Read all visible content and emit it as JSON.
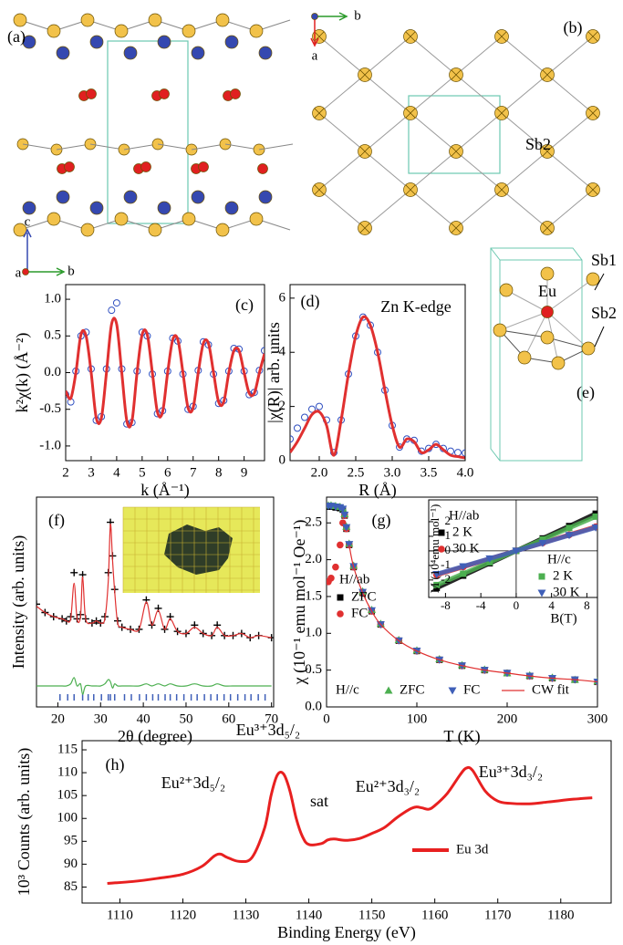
{
  "structure_labels": {
    "a": "(a)",
    "b": "(b)",
    "e": "(e)",
    "sb2_b": "Sb2",
    "eu": "Eu",
    "sb1": "Sb1",
    "sb2_e": "Sb2",
    "axis_b_top": "b",
    "axis_a_top": "a",
    "axis_c": "c",
    "axis_b": "b",
    "axis_a": "a"
  },
  "chart_data": [
    {
      "type": "line",
      "panel_label": "(c)",
      "xlabel": "k (Å⁻¹)",
      "ylabel": "k²χ(k) (Å⁻²)",
      "xlim": [
        2,
        9.8
      ],
      "ylim": [
        -1.2,
        1.2
      ],
      "xticks": [
        2,
        3,
        4,
        5,
        6,
        7,
        8,
        9
      ],
      "yticks": [
        {
          "value": -1,
          "label": "-1.0"
        },
        -0.5,
        {
          "value": 0,
          "label": "0.0"
        },
        0.5,
        {
          "value": 1,
          "label": "1.0"
        }
      ],
      "x": [
        2.0,
        2.2,
        2.4,
        2.6,
        2.8,
        3.0,
        3.2,
        3.4,
        3.6,
        3.8,
        4.0,
        4.2,
        4.4,
        4.6,
        4.8,
        5.0,
        5.2,
        5.4,
        5.6,
        5.8,
        6.0,
        6.2,
        6.4,
        6.6,
        6.8,
        7.0,
        7.2,
        7.4,
        7.6,
        7.8,
        8.0,
        8.2,
        8.4,
        8.6,
        8.8,
        9.0,
        9.2,
        9.4,
        9.6,
        9.8
      ],
      "series": [
        {
          "color": "#2f4fc0",
          "marker": "open-circle",
          "values": [
            -0.3,
            -0.4,
            0.02,
            0.5,
            0.55,
            0.05,
            -0.65,
            -0.6,
            0.05,
            0.85,
            0.95,
            0.05,
            -0.7,
            -0.68,
            0.02,
            0.55,
            0.5,
            -0.02,
            -0.56,
            -0.52,
            0.02,
            0.47,
            0.43,
            -0.02,
            -0.5,
            -0.46,
            0.03,
            0.42,
            0.38,
            -0.02,
            -0.42,
            -0.38,
            0.02,
            0.33,
            0.32,
            0.02,
            -0.3,
            -0.27,
            0.03,
            0.3
          ]
        },
        {
          "color": "#e03030",
          "marker": "line",
          "values": [
            -0.25,
            -0.35,
            0,
            0.52,
            0.5,
            0,
            -0.62,
            -0.62,
            0,
            0.66,
            0.66,
            0,
            -0.66,
            -0.66,
            0,
            0.52,
            0.52,
            0,
            -0.54,
            -0.54,
            0,
            0.45,
            0.45,
            0,
            -0.48,
            -0.48,
            0,
            0.4,
            0.4,
            0,
            -0.4,
            -0.4,
            0,
            0.3,
            0.3,
            0,
            -0.28,
            -0.28,
            0,
            0.26
          ]
        }
      ]
    },
    {
      "type": "line",
      "panel_label": "(d)",
      "annotation": "Zn K-edge",
      "xlabel": "R (Å)",
      "ylabel": "|χ(R)| arb. units",
      "xlim": [
        1.6,
        4.0
      ],
      "ylim": [
        0,
        6.5
      ],
      "xticks": [
        {
          "value": 2,
          "label": "2.0"
        },
        2.5,
        {
          "value": 3,
          "label": "3.0"
        },
        3.5,
        {
          "value": 4,
          "label": "4.0"
        }
      ],
      "yticks": [
        0,
        2,
        4,
        6
      ],
      "x": [
        1.6,
        1.7,
        1.8,
        1.9,
        2.0,
        2.1,
        2.2,
        2.3,
        2.4,
        2.5,
        2.6,
        2.7,
        2.8,
        2.9,
        3.0,
        3.1,
        3.2,
        3.3,
        3.4,
        3.5,
        3.6,
        3.7,
        3.8,
        3.9,
        4.0
      ],
      "series": [
        {
          "color": "#2f4fc0",
          "marker": "open-circle",
          "values": [
            0.8,
            1.2,
            1.6,
            1.9,
            2.0,
            1.5,
            0.3,
            1.5,
            3.2,
            4.6,
            5.3,
            5.0,
            4.0,
            2.6,
            1.3,
            0.5,
            0.8,
            0.75,
            0.35,
            0.45,
            0.6,
            0.45,
            0.35,
            0.3,
            0.28
          ]
        },
        {
          "color": "#e03030",
          "marker": "line",
          "values": [
            0.3,
            0.7,
            1.2,
            1.7,
            1.8,
            1.3,
            0.2,
            1.5,
            3.2,
            4.6,
            5.3,
            5.0,
            4.0,
            2.6,
            1.3,
            0.5,
            0.8,
            0.7,
            0.3,
            0.4,
            0.6,
            0.4,
            0.2,
            0.15,
            0.1
          ]
        }
      ]
    },
    {
      "type": "line",
      "panel_label": "(f)",
      "xlabel": "2θ (degree)",
      "ylabel": "Intensity (arb. units)",
      "xlim": [
        15,
        70.5
      ],
      "ylim": [
        0,
        100
      ],
      "xticks": [
        20,
        30,
        40,
        50,
        60,
        70
      ],
      "x": [
        15,
        17,
        19,
        21,
        22,
        23,
        23.8,
        24.5,
        25.3,
        25.8,
        26.5,
        28,
        29,
        30,
        31,
        31.8,
        32.3,
        32.8,
        33.3,
        34,
        35,
        37,
        39,
        40.7,
        42,
        43.5,
        45,
        46.3,
        48,
        50,
        52,
        54,
        56,
        57.3,
        59,
        61,
        63,
        65,
        67,
        70
      ],
      "series": [
        {
          "color": "#000000",
          "marker": "cross",
          "values": [
            49,
            45,
            43,
            42,
            41,
            43,
            64,
            42,
            44,
            63,
            42,
            40,
            41,
            40,
            43,
            64,
            88,
            72,
            56,
            41,
            38,
            37,
            37,
            51,
            39,
            47,
            37,
            43,
            36,
            35,
            39,
            35,
            34,
            39,
            34,
            34,
            35,
            33,
            34,
            33
          ]
        },
        {
          "color": "#e03030",
          "marker": "line",
          "values": [
            48,
            45,
            43,
            42,
            41,
            42,
            59,
            42,
            43,
            62,
            42,
            40,
            41,
            40,
            42,
            60,
            87,
            70,
            55,
            40,
            38,
            37,
            37,
            50,
            39,
            46,
            37,
            42,
            36,
            35,
            38,
            35,
            34,
            38,
            34,
            34,
            35,
            33,
            34,
            33
          ]
        },
        {
          "color": "#4caf50",
          "marker": "line",
          "values": [
            10,
            10,
            10,
            10,
            10,
            11,
            14,
            10,
            11,
            6,
            10,
            10,
            10,
            10,
            11,
            13,
            12,
            9,
            11,
            10,
            10,
            10,
            10,
            11,
            10,
            11,
            10,
            11,
            10,
            10,
            11,
            10,
            10,
            11,
            10,
            10,
            10,
            10,
            10,
            10
          ]
        }
      ],
      "bragg": [
        20.5,
        22.3,
        23.8,
        25.8,
        27.1,
        28.4,
        30.2,
        31.8,
        32.3,
        33.3,
        35.6,
        37.2,
        39.1,
        40.7,
        42.2,
        43.5,
        45.1,
        46.3,
        47.8,
        49.5,
        51.2,
        52.6,
        54.3,
        55.8,
        57.3,
        58.9,
        60.4,
        62.1,
        63.8,
        65.2,
        66.9,
        68.5
      ]
    },
    {
      "type": "scatter",
      "xlabel": "T (K)",
      "ylabel": "χ (10⁻¹ emu mol⁻¹ Oe⁻¹)",
      "panel_label": "(g)",
      "xlim": [
        0,
        300
      ],
      "ylim": [
        0,
        2.85
      ],
      "xticks": [
        0,
        100,
        200,
        300
      ],
      "yticks": [
        {
          "value": 0,
          "label": "0.0"
        },
        0.5,
        {
          "value": 1,
          "label": "1.0"
        },
        1.5,
        {
          "value": 2,
          "label": "2.0"
        },
        2.5
      ],
      "legend_groups": [
        "H//ab",
        "H//c"
      ],
      "x": [
        2,
        5,
        10,
        15,
        18,
        20,
        22,
        25,
        30,
        40,
        50,
        60,
        80,
        100,
        125,
        150,
        175,
        200,
        225,
        250,
        275,
        300
      ],
      "series": [
        {
          "name": "ZFC",
          "color": "#000000",
          "marker": "square",
          "values": [
            2.72,
            2.72,
            2.71,
            2.7,
            2.68,
            2.6,
            2.42,
            2.2,
            1.9,
            1.55,
            1.3,
            1.12,
            0.9,
            0.76,
            0.64,
            0.56,
            0.5,
            0.46,
            0.42,
            0.39,
            0.37,
            0.34
          ]
        },
        {
          "name": "FC",
          "color": "#e03030",
          "marker": "circle",
          "values": [
            1.7,
            1.75,
            1.9,
            2.2,
            2.5,
            2.6,
            2.42,
            2.2,
            1.9,
            1.55,
            1.3,
            1.12,
            0.9,
            0.76,
            0.64,
            0.56,
            0.5,
            0.46,
            0.42,
            0.39,
            0.37,
            0.34
          ]
        },
        {
          "name": "ZFC",
          "color": "#4caf50",
          "marker": "triangle",
          "values": [
            2.74,
            2.74,
            2.73,
            2.72,
            2.7,
            2.62,
            2.45,
            2.22,
            1.92,
            1.57,
            1.32,
            1.13,
            0.91,
            0.77,
            0.65,
            0.57,
            0.51,
            0.46,
            0.43,
            0.4,
            0.37,
            0.35
          ]
        },
        {
          "name": "FC",
          "color": "#3f5fb8",
          "marker": "triangle-down",
          "values": [
            2.73,
            2.73,
            2.72,
            2.71,
            2.69,
            2.61,
            2.44,
            2.21,
            1.91,
            1.56,
            1.31,
            1.12,
            0.9,
            0.76,
            0.64,
            0.56,
            0.5,
            0.46,
            0.42,
            0.39,
            0.37,
            0.34
          ]
        },
        {
          "name": "CW fit",
          "color": "#e03030",
          "marker": "line",
          "x": [
            25,
            30,
            40,
            50,
            60,
            80,
            100,
            125,
            150,
            175,
            200,
            225,
            250,
            275,
            300
          ],
          "values": [
            2.2,
            1.9,
            1.55,
            1.3,
            1.12,
            0.9,
            0.76,
            0.64,
            0.56,
            0.5,
            0.46,
            0.42,
            0.39,
            0.37,
            0.34
          ]
        }
      ]
    },
    {
      "type": "scatter",
      "xlabel": "B(T)",
      "ylabel": "M (10⁴emu mol⁻¹)",
      "zero_lines": true,
      "xlim": [
        -9.9,
        9.2
      ],
      "ylim": [
        -3.2,
        3.5
      ],
      "xticks": [
        -8,
        -4,
        0,
        4,
        8
      ],
      "yticks": [
        -2,
        -1,
        0,
        1,
        2
      ],
      "legend_groups": [
        "H//ab",
        "H//c"
      ],
      "x": [
        -9,
        -6,
        -3,
        0,
        3,
        6,
        9
      ],
      "series": [
        {
          "name": "2 K",
          "color": "#000000",
          "marker": "square",
          "values": [
            -2.55,
            -1.7,
            -0.85,
            0,
            0.85,
            1.7,
            2.55
          ]
        },
        {
          "name": "30 K",
          "color": "#e03030",
          "marker": "circle",
          "values": [
            -1.65,
            -1.1,
            -0.55,
            0,
            0.55,
            1.1,
            1.65
          ]
        },
        {
          "name": "2 K",
          "color": "#4caf50",
          "marker": "square",
          "values": [
            -2.35,
            -1.57,
            -0.78,
            0,
            0.78,
            1.57,
            2.35
          ]
        },
        {
          "name": "30 K",
          "color": "#3f5fb8",
          "marker": "triangle-down",
          "values": [
            -1.6,
            -1.07,
            -0.53,
            0,
            0.53,
            1.07,
            1.6
          ]
        }
      ]
    },
    {
      "type": "line",
      "panel_label": "(h)",
      "xlabel": "Binding Energy (eV)",
      "ylabel": "10³ Counts (arb. units)",
      "annotations": [
        "Eu²⁺3d₅/₂",
        "Eu³⁺3d₅/₂",
        "sat",
        "Eu²⁺3d₃/₂",
        "Eu³⁺3d₃/₂"
      ],
      "xlim": [
        1104,
        1188
      ],
      "ylim": [
        81.5,
        117
      ],
      "xticks": [
        1110,
        1120,
        1130,
        1140,
        1150,
        1160,
        1170,
        1180
      ],
      "yticks": [
        85,
        90,
        95,
        100,
        105,
        110,
        115
      ],
      "x": [
        1108,
        1112,
        1116,
        1120,
        1123,
        1125,
        1126,
        1127,
        1129,
        1131,
        1133,
        1134,
        1135,
        1136,
        1137,
        1138,
        1139,
        1140,
        1142,
        1143,
        1144,
        1146,
        1148,
        1150,
        1152,
        1154,
        1156,
        1157,
        1158,
        1159,
        1160,
        1162,
        1164,
        1165,
        1166,
        1168,
        1170,
        1172,
        1175,
        1178,
        1182,
        1185
      ],
      "series": [
        {
          "name": "Eu 3d",
          "color": "#e82020",
          "marker": "line",
          "values": [
            85.8,
            86.2,
            86.9,
            87.8,
            89.5,
            91.8,
            92.2,
            91.5,
            90.6,
            91.5,
            98,
            105,
            109.5,
            109.7,
            106,
            100,
            96,
            94.3,
            94.5,
            95.3,
            95.5,
            95.2,
            95.6,
            96.7,
            98,
            100.2,
            102,
            102.5,
            102.3,
            102,
            102.8,
            105.5,
            109.5,
            111,
            110.5,
            106,
            103.8,
            103.3,
            103.2,
            103.6,
            104.2,
            104.5
          ]
        }
      ]
    }
  ]
}
